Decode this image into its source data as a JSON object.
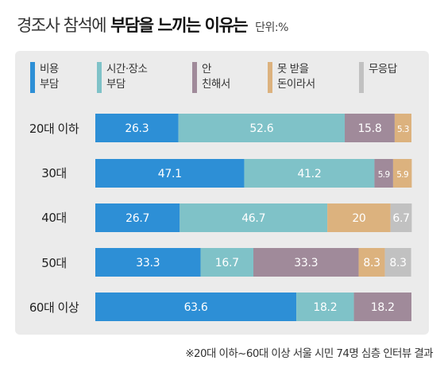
{
  "header": {
    "title_normal": "경조사 참석에",
    "title_bold": "부담을 느끼는 이유는",
    "unit": "단위:%"
  },
  "legend": [
    {
      "line1": "비용",
      "line2": "부담",
      "color": "#2d8fd6"
    },
    {
      "line1": "시간·장소",
      "line2": "부담",
      "color": "#7fc2c8"
    },
    {
      "line1": "안",
      "line2": "친해서",
      "color": "#a08a9a"
    },
    {
      "line1": "못 받을",
      "line2": "돈이라서",
      "color": "#dcb27e"
    },
    {
      "line1": "무응답",
      "line2": "",
      "color": "#c1c1c1"
    }
  ],
  "chart_data": {
    "type": "bar",
    "orientation": "horizontal",
    "stacked": true,
    "categories": [
      "20대 이하",
      "30대",
      "40대",
      "50대",
      "60대 이상"
    ],
    "series": [
      {
        "name": "비용 부담",
        "color": "#2d8fd6",
        "values": [
          26.3,
          47.1,
          26.7,
          33.3,
          63.6
        ],
        "labels": [
          "26.3",
          "47.1",
          "26.7",
          "33.3",
          "63.6"
        ]
      },
      {
        "name": "시간·장소 부담",
        "color": "#7fc2c8",
        "values": [
          52.6,
          41.2,
          46.7,
          16.7,
          18.2
        ],
        "labels": [
          "52.6",
          "41.2",
          "46.7",
          "16.7",
          "18.2"
        ]
      },
      {
        "name": "안 친해서",
        "color": "#a08a9a",
        "values": [
          15.8,
          5.9,
          0,
          33.3,
          18.2
        ],
        "labels": [
          "15.8",
          "5.9",
          "",
          "33.3",
          "18.2"
        ]
      },
      {
        "name": "못 받을 돈이라서",
        "color": "#dcb27e",
        "values": [
          5.3,
          5.9,
          20,
          8.3,
          0
        ],
        "labels": [
          "5.3",
          "5.9",
          "20",
          "8.3",
          ""
        ]
      },
      {
        "name": "무응답",
        "color": "#c1c1c1",
        "values": [
          0,
          0,
          6.7,
          8.3,
          0
        ],
        "labels": [
          "",
          "",
          "6.7",
          "8.3",
          ""
        ]
      }
    ],
    "xlim": [
      0,
      100
    ]
  },
  "footnote": "※20대 이하~60대 이상 서울 시민 74명 심층 인터뷰 결과"
}
